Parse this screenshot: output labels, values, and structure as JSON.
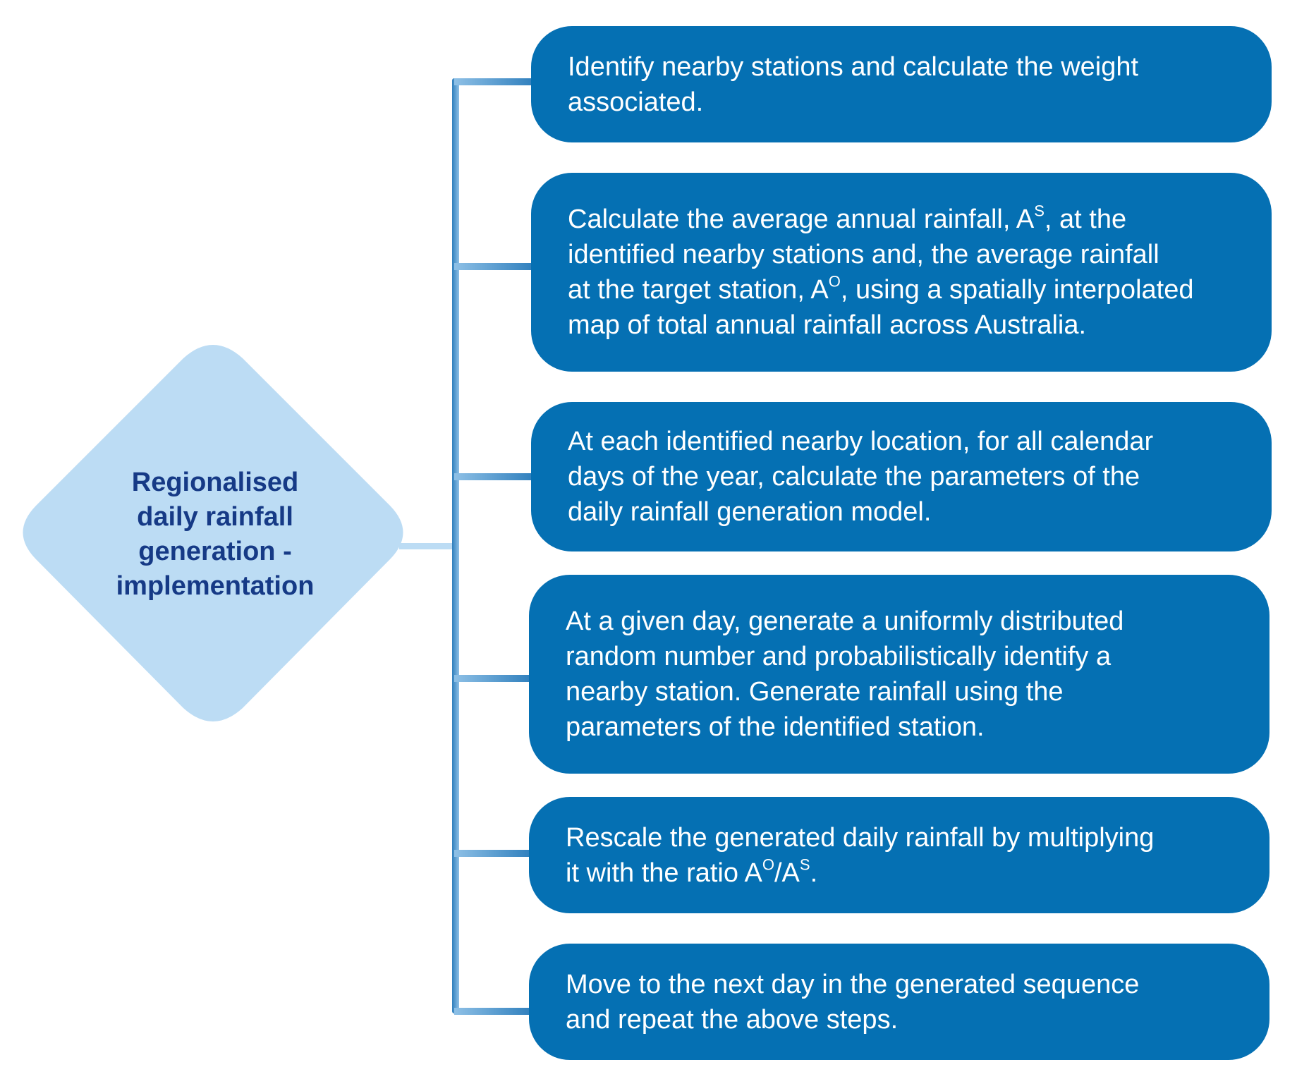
{
  "root": {
    "label_lines": [
      "Regionalised",
      "daily rainfall",
      "generation -",
      "implementation"
    ]
  },
  "steps": [
    {
      "lines": [
        {
          "parts": [
            {
              "t": "Identify nearby stations and calculate the weight"
            }
          ]
        },
        {
          "parts": [
            {
              "t": "associated."
            }
          ]
        }
      ]
    },
    {
      "lines": [
        {
          "parts": [
            {
              "t": "Calculate the average annual rainfall, A"
            },
            {
              "t": "S",
              "sup": true
            },
            {
              "t": ", at the"
            }
          ]
        },
        {
          "parts": [
            {
              "t": "identified nearby stations and, the average rainfall"
            }
          ]
        },
        {
          "parts": [
            {
              "t": "at the target station, A"
            },
            {
              "t": "O",
              "sup": true
            },
            {
              "t": ", using a spatially interpolated"
            }
          ]
        },
        {
          "parts": [
            {
              "t": "map of total annual rainfall across Australia."
            }
          ]
        }
      ]
    },
    {
      "lines": [
        {
          "parts": [
            {
              "t": "At each identified nearby location, for all calendar"
            }
          ]
        },
        {
          "parts": [
            {
              "t": "days of the year, calculate the parameters of the"
            }
          ]
        },
        {
          "parts": [
            {
              "t": "daily rainfall generation model."
            }
          ]
        }
      ]
    },
    {
      "lines": [
        {
          "parts": [
            {
              "t": "At a given day, generate a uniformly distributed"
            }
          ]
        },
        {
          "parts": [
            {
              "t": "random number and probabilistically identify a"
            }
          ]
        },
        {
          "parts": [
            {
              "t": "nearby station. Generate rainfall using the"
            }
          ]
        },
        {
          "parts": [
            {
              "t": "parameters of the identified station."
            }
          ]
        }
      ]
    },
    {
      "lines": [
        {
          "parts": [
            {
              "t": "Rescale the generated daily rainfall by multiplying"
            }
          ]
        },
        {
          "parts": [
            {
              "t": "it with the ratio A"
            },
            {
              "t": "O",
              "sup": true
            },
            {
              "t": "/A"
            },
            {
              "t": "S",
              "sup": true
            },
            {
              "t": "."
            }
          ]
        }
      ]
    },
    {
      "lines": [
        {
          "parts": [
            {
              "t": "Move to the next day in the generated sequence"
            }
          ]
        },
        {
          "parts": [
            {
              "t": "and repeat the above steps."
            }
          ]
        }
      ]
    }
  ],
  "colors": {
    "diamond_fill": "#bcdcf4",
    "diamond_text": "#163a86",
    "box_fill": "#0570b3",
    "box_text": "#ffffff",
    "connector_light": "#bcdcf4",
    "connector_dark": "#2f7fbd"
  }
}
